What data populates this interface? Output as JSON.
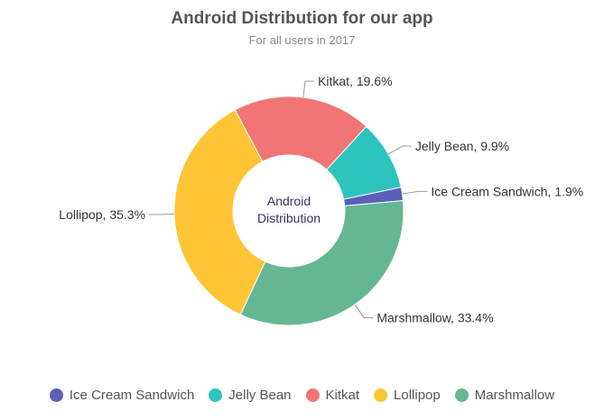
{
  "chart_data": {
    "type": "pie",
    "title": "Android Distribution for our app",
    "subtitle": "For all users in 2017",
    "center_label": [
      "Android",
      "Distribution"
    ],
    "legend_position": "bottom",
    "slices": [
      {
        "name": "Ice Cream Sandwich",
        "value": 1.9,
        "label": "Ice Cream Sandwich, 1.9%",
        "color": "#5B5FB8"
      },
      {
        "name": "Jelly Bean",
        "value": 9.9,
        "label": "Jelly Bean, 9.9%",
        "color": "#2EC4BE"
      },
      {
        "name": "Kitkat",
        "value": 19.6,
        "label": "Kitkat, 19.6%",
        "color": "#F07574"
      },
      {
        "name": "Lollipop",
        "value": 35.3,
        "label": "Lollipop, 35.3%",
        "color": "#FDC435"
      },
      {
        "name": "Marshmallow",
        "value": 33.4,
        "label": "Marshmallow, 33.4%",
        "color": "#64B792"
      }
    ]
  }
}
